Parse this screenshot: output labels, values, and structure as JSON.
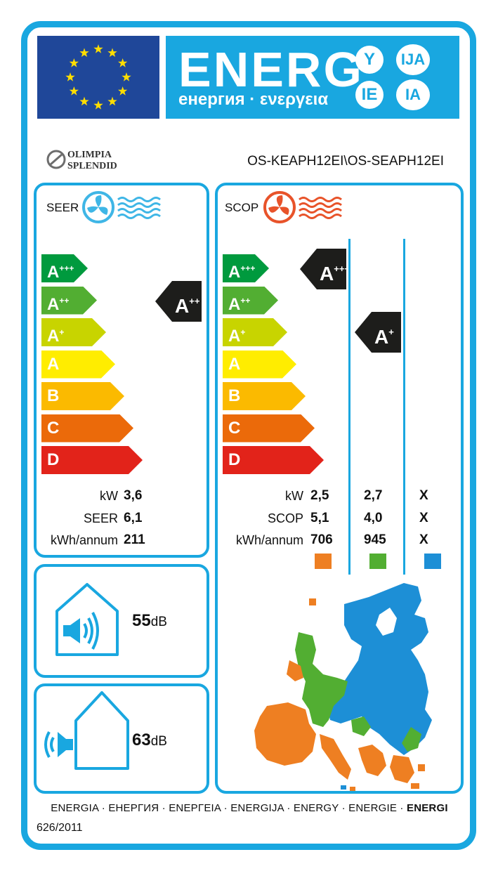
{
  "header": {
    "energ_word": "ENERG",
    "energ_subtitle": "енергия · ενεργεια",
    "suffixes": [
      "Y",
      "IJA",
      "IE",
      "IA"
    ]
  },
  "brand": {
    "line1": "OLIMPIA",
    "line2": "SPLENDID"
  },
  "model": "OS-KEAPH12EI\\OS-SEAPH12EI",
  "seer": {
    "label": "SEER",
    "classes": [
      {
        "name": "A",
        "plus": "+++",
        "color": "#009a3e"
      },
      {
        "name": "A",
        "plus": "++",
        "color": "#52ae32"
      },
      {
        "name": "A",
        "plus": "+",
        "color": "#c8d400"
      },
      {
        "name": "A",
        "plus": "",
        "color": "#ffed00"
      },
      {
        "name": "B",
        "plus": "",
        "color": "#fbba00"
      },
      {
        "name": "C",
        "plus": "",
        "color": "#eb6a0a"
      },
      {
        "name": "D",
        "plus": "",
        "color": "#e2231a"
      }
    ],
    "rating": {
      "name": "A",
      "plus": "++"
    },
    "rows": [
      {
        "label": "kW",
        "value": "3,6"
      },
      {
        "label": "SEER",
        "value": "6,1"
      },
      {
        "label": "kWh/annum",
        "value": "211"
      }
    ]
  },
  "scop": {
    "label": "SCOP",
    "ratings": [
      {
        "name": "A",
        "plus": "+++"
      },
      {
        "name": "A",
        "plus": "+"
      }
    ],
    "rows": [
      {
        "label": "kW",
        "values": [
          "2,5",
          "2,7",
          "X"
        ]
      },
      {
        "label": "SCOP",
        "values": [
          "5,1",
          "4,0",
          "X"
        ]
      },
      {
        "label": "kWh/annum",
        "values": [
          "706",
          "945",
          "X"
        ]
      }
    ],
    "zone_colors": [
      "#ee7f22",
      "#52ae32",
      "#1d8fd6"
    ]
  },
  "noise_indoor": {
    "value": "55",
    "unit": "dB"
  },
  "noise_outdoor": {
    "value": "63",
    "unit": "dB"
  },
  "footer": {
    "languages": "ENERGIA · ЕНЕРГИЯ · ΕΝΕΡΓΕΙΑ · ENERGIJA · ENERGY · ENERGIE · ",
    "languages_bold": "ENERGI",
    "regulation": "626/2011"
  },
  "colors": {
    "accent_blue": "#19a7e0",
    "eu_blue": "#1f4799",
    "star_yellow": "#ffdd00"
  },
  "icons": [
    "eu-flag-stars",
    "fan-cooling-icon",
    "fan-heating-icon",
    "indoor-speaker-icon",
    "outdoor-speaker-icon",
    "europe-climate-map"
  ]
}
